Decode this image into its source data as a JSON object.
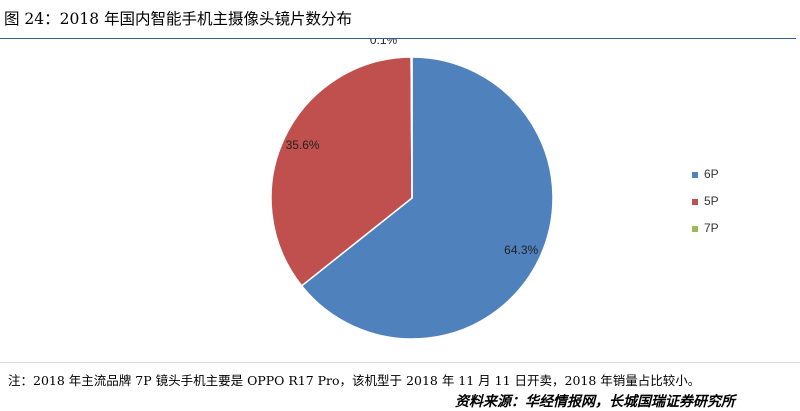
{
  "figure": {
    "title": "图 24：2018 年国内智能手机主摄像头镜片数分布",
    "note": "注：2018 年主流品牌 7P 镜头手机主要是 OPPO R17 Pro，该机型于 2018 年 11 月 11 日开卖，2018 年销量占比较小。",
    "source": "资料来源：华经情报网，长城国瑞证券研究所"
  },
  "chart_data": {
    "type": "pie",
    "title": "",
    "legend_position": "right",
    "categories": [
      "6P",
      "5P",
      "7P"
    ],
    "values": [
      64.3,
      35.6,
      0.1
    ],
    "value_labels": [
      "64.3%",
      "35.6%",
      "0.1%"
    ],
    "colors": [
      "#4f81bd",
      "#c0504d",
      "#9bbb59"
    ],
    "start_angle": "12 o'clock",
    "direction": "clockwise"
  }
}
